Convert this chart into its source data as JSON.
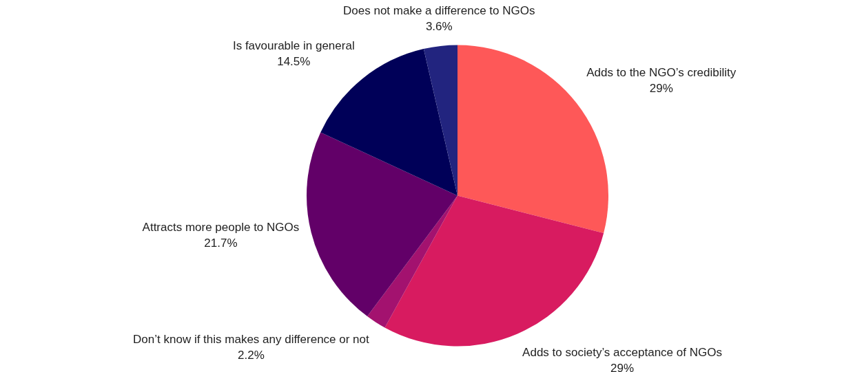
{
  "chart_data": {
    "type": "pie",
    "categories": [
      "Adds to the NGO’s credibility",
      "Adds to society’s acceptance of NGOs",
      "Don’t know if this makes any difference or not",
      "Attracts more people to NGOs",
      "Is favourable in general",
      "Does not make a difference to NGOs"
    ],
    "values": [
      29,
      29,
      2.2,
      21.7,
      14.5,
      3.6
    ],
    "value_labels": [
      "29%",
      "29%",
      "2.2%",
      "21.7%",
      "14.5%",
      "3.6%"
    ],
    "colors": [
      "#fe5858",
      "#d81b60",
      "#a3126f",
      "#620068",
      "#000058",
      "#22247f"
    ],
    "legend": false
  }
}
